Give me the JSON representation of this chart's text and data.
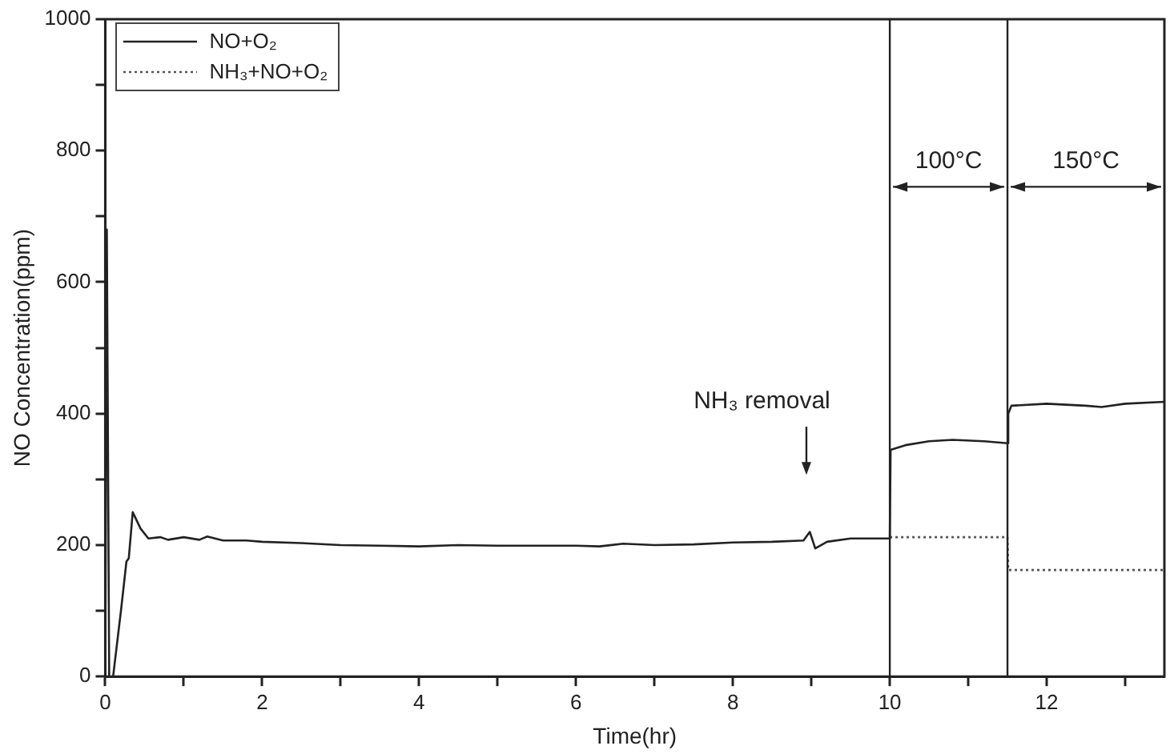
{
  "chart_data": {
    "type": "line",
    "xlabel": "Time(hr)",
    "ylabel": "NO Concentration(ppm)",
    "series": [
      {
        "name": "NO+O₂",
        "color": "#222222",
        "line_style": "solid",
        "x": [
          0,
          0.02,
          0.05,
          0.1,
          0.2,
          0.27,
          0.3,
          0.35,
          0.45,
          0.55,
          0.7,
          0.8,
          1.0,
          1.2,
          1.3,
          1.5,
          1.8,
          2.0,
          2.5,
          3.0,
          3.5,
          4.0,
          4.5,
          5.0,
          5.5,
          6.0,
          6.3,
          6.6,
          7.0,
          7.5,
          8.0,
          8.5,
          8.9,
          8.98,
          9.05,
          9.2,
          9.5,
          10,
          10.01,
          10.2,
          10.5,
          10.8,
          11.2,
          11.5,
          11.51,
          11.55,
          12.0,
          12.5,
          12.7,
          13.0,
          13.5
        ],
        "values": [
          0,
          680,
          0,
          0,
          100,
          175,
          180,
          250,
          225,
          210,
          212,
          208,
          212,
          208,
          213,
          207,
          207,
          205,
          203,
          200,
          199,
          198,
          200,
          199,
          199,
          199,
          198,
          202,
          200,
          201,
          204,
          205,
          207,
          220,
          195,
          205,
          210,
          210,
          345,
          352,
          358,
          360,
          358,
          355,
          400,
          412,
          415,
          412,
          410,
          415,
          418
        ]
      },
      {
        "name": "NH₃+NO+O₂",
        "color": "#555555",
        "line_style": "dotted",
        "x": [
          10,
          11.5,
          11.51,
          13.5
        ],
        "values": [
          212,
          212,
          162,
          162
        ]
      }
    ],
    "xlim": [
      0,
      13.5
    ],
    "xticks": [
      0,
      {
        "value": 1,
        "label": null
      },
      2,
      {
        "value": 3,
        "label": null
      },
      4,
      {
        "value": 5,
        "label": null
      },
      6,
      {
        "value": 7,
        "label": null
      },
      8,
      {
        "value": 9,
        "label": null
      },
      10,
      {
        "value": 11,
        "label": null
      },
      12,
      {
        "value": 13,
        "label": null
      }
    ],
    "ylim": [
      0,
      1000
    ],
    "yticks": [
      0,
      {
        "value": 100,
        "label": null
      },
      200,
      {
        "value": 300,
        "label": null
      },
      400,
      {
        "value": 500,
        "label": null
      },
      600,
      {
        "value": 700,
        "label": null
      },
      800,
      {
        "value": 900,
        "label": null
      },
      1000
    ],
    "ref_lines": [
      {
        "axis": "x",
        "value": 10
      },
      {
        "axis": "x",
        "value": 11.5
      }
    ],
    "annotations": [
      "100°C",
      "150°C",
      "NH₃ removal"
    ],
    "legend": "top left",
    "marker": "none",
    "grid": false
  }
}
